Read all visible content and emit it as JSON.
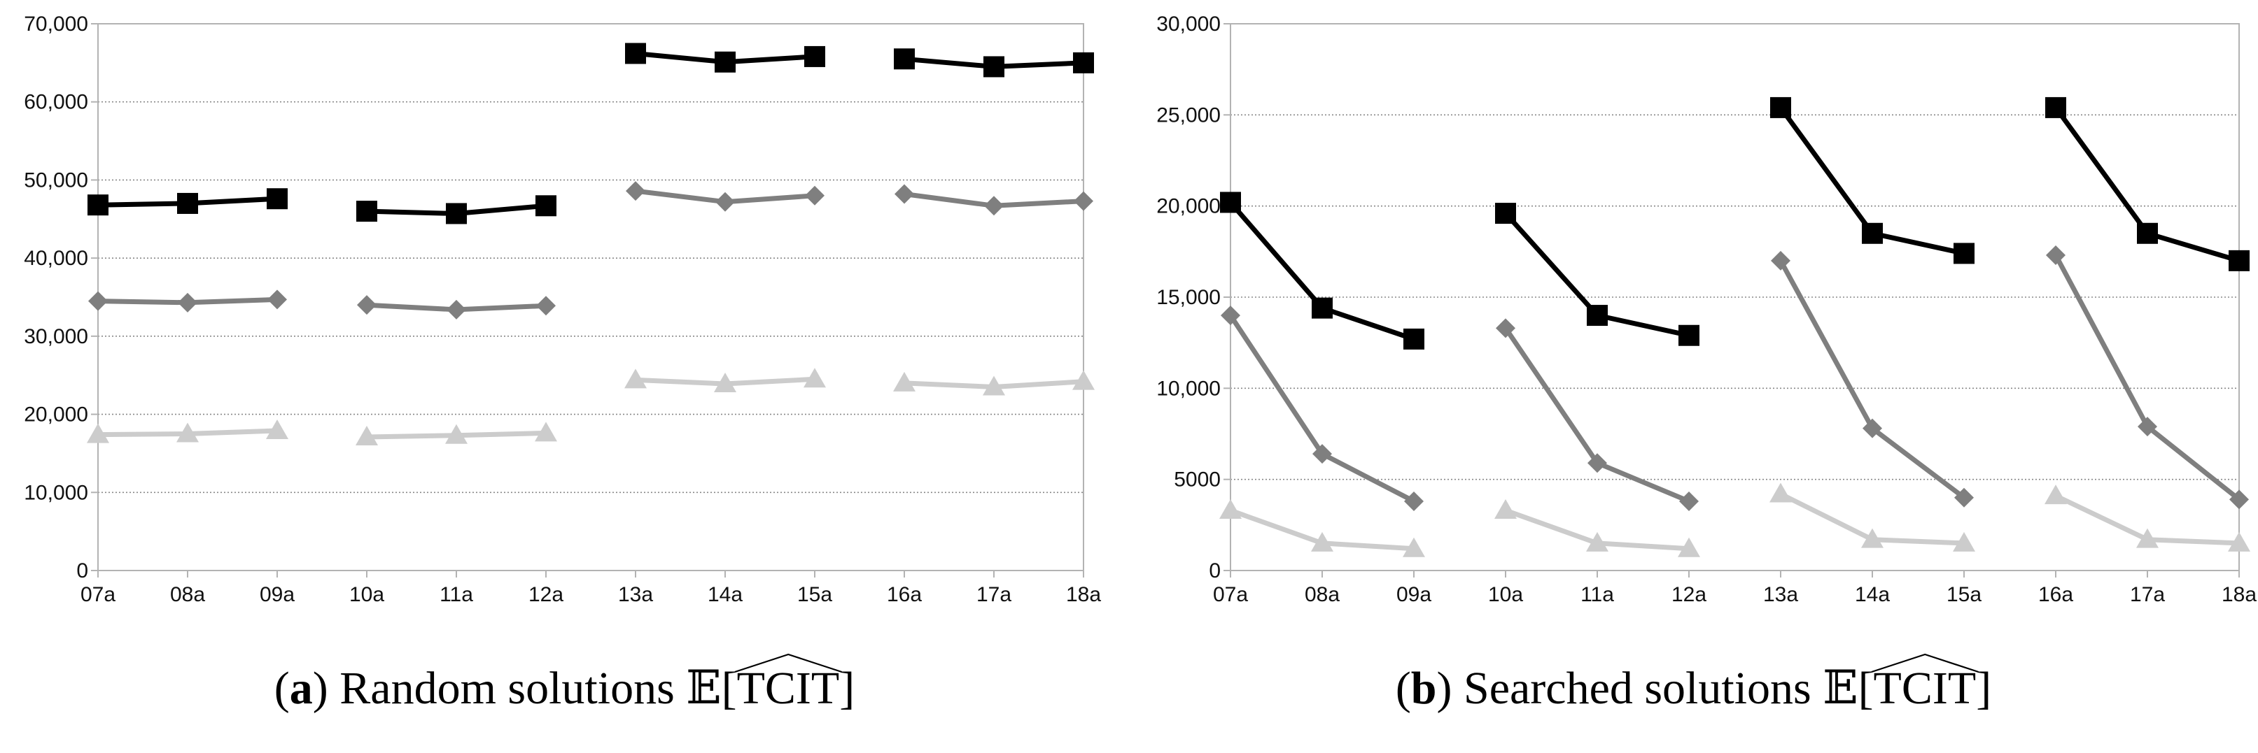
{
  "figure": {
    "colors": {
      "series_top": "#000000",
      "series_mid": "#7f7f7f",
      "series_low": "#cccccc",
      "grid": "#888888",
      "axis": "#b3b3b3"
    }
  },
  "chart_data": [
    {
      "type": "line",
      "id": "a",
      "caption": {
        "letter": "a",
        "text": "Random solutions",
        "expr_prefix": "𝔼",
        "expr_open": "[",
        "expr_body": "TCIT",
        "expr_close": "]"
      },
      "categories": [
        "07a",
        "08a",
        "09a",
        "10a",
        "11a",
        "12a",
        "13a",
        "14a",
        "15a",
        "16a",
        "17a",
        "18a"
      ],
      "groups": [
        [
          0,
          1,
          2
        ],
        [
          3,
          4,
          5
        ],
        [
          6,
          7,
          8
        ],
        [
          9,
          10,
          11
        ]
      ],
      "ylim": [
        0,
        70000
      ],
      "yticks": [
        0,
        10000,
        20000,
        30000,
        40000,
        50000,
        60000,
        70000
      ],
      "ytick_labels": [
        "0",
        "10,000",
        "20,000",
        "30,000",
        "40,000",
        "50,000",
        "60,000",
        "70,000"
      ],
      "grid": true,
      "legend": "none",
      "series": [
        {
          "name": "top",
          "marker": "square",
          "color": "#000000",
          "values": [
            46800,
            47000,
            47600,
            46000,
            45700,
            46700,
            66200,
            65100,
            65800,
            65500,
            64500,
            65000
          ]
        },
        {
          "name": "mid",
          "marker": "diamond",
          "color": "#7f7f7f",
          "values": [
            34500,
            34300,
            34700,
            34000,
            33400,
            33900,
            48600,
            47200,
            48000,
            48200,
            46700,
            47300
          ]
        },
        {
          "name": "low",
          "marker": "triangle",
          "color": "#cccccc",
          "values": [
            17400,
            17500,
            17900,
            17100,
            17300,
            17600,
            24400,
            23900,
            24500,
            24000,
            23500,
            24200
          ]
        }
      ]
    },
    {
      "type": "line",
      "id": "b",
      "caption": {
        "letter": "b",
        "text": "Searched solutions",
        "expr_prefix": "𝔼",
        "expr_open": "[",
        "expr_body": "TCIT",
        "expr_close": "]"
      },
      "categories": [
        "07a",
        "08a",
        "09a",
        "10a",
        "11a",
        "12a",
        "13a",
        "14a",
        "15a",
        "16a",
        "17a",
        "18a"
      ],
      "groups": [
        [
          0,
          1,
          2
        ],
        [
          3,
          4,
          5
        ],
        [
          6,
          7,
          8
        ],
        [
          9,
          10,
          11
        ]
      ],
      "ylim": [
        0,
        30000
      ],
      "yticks": [
        0,
        5000,
        10000,
        15000,
        20000,
        25000,
        30000
      ],
      "ytick_labels": [
        "0",
        "5000",
        "10,000",
        "15,000",
        "20,000",
        "25,000",
        "30,000"
      ],
      "grid": true,
      "legend": "none",
      "series": [
        {
          "name": "top",
          "marker": "square",
          "color": "#000000",
          "values": [
            20200,
            14400,
            12700,
            19600,
            14000,
            12900,
            25400,
            18500,
            17400,
            25400,
            18500,
            17000
          ]
        },
        {
          "name": "mid",
          "marker": "diamond",
          "color": "#7f7f7f",
          "values": [
            14000,
            6400,
            3800,
            13300,
            5900,
            3800,
            17000,
            7800,
            4000,
            17300,
            7900,
            3900
          ]
        },
        {
          "name": "low",
          "marker": "triangle",
          "color": "#cccccc",
          "values": [
            3300,
            1500,
            1200,
            3300,
            1500,
            1200,
            4200,
            1700,
            1500,
            4100,
            1700,
            1500
          ]
        }
      ]
    }
  ]
}
